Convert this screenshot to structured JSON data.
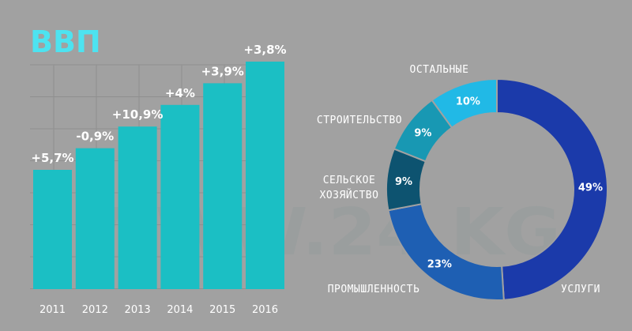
{
  "watermark": "WWW.24.KG",
  "chart_data": [
    {
      "type": "bar",
      "title": "ВВП",
      "categories": [
        "2011",
        "2012",
        "2013",
        "2014",
        "2015",
        "2016"
      ],
      "labels": [
        "+5,7%",
        "-0,9%",
        "+10,9%",
        "+4%",
        "+3,9%",
        "+3,8%"
      ],
      "values": [
        5.7,
        -0.9,
        10.9,
        4,
        3.9,
        3.8
      ],
      "grid": true,
      "color": "#1bbfc4",
      "title_color": "#4de3f0"
    },
    {
      "type": "pie",
      "style": "donut",
      "slices": [
        {
          "name": "УСЛУГИ",
          "value": 49,
          "label": "49%",
          "color": "#1b3aaa"
        },
        {
          "name": "ПРОМЫШЛЕННОСТЬ",
          "value": 23,
          "label": "23%",
          "color": "#1e5fb3"
        },
        {
          "name": "СЕЛЬСКОЕ ХОЗЯЙСТВО",
          "name_lines": [
            "СЕЛЬСКОЕ",
            "ХОЗЯЙСТВО"
          ],
          "value": 9,
          "label": "9%",
          "color": "#0d5370"
        },
        {
          "name": "СТРОИТЕЛЬСТВО",
          "value": 9,
          "label": "9%",
          "color": "#1898b3"
        },
        {
          "name": "ОСТАЛЬНЫЕ",
          "value": 10,
          "label": "10%",
          "color": "#21b9e6"
        }
      ]
    }
  ]
}
